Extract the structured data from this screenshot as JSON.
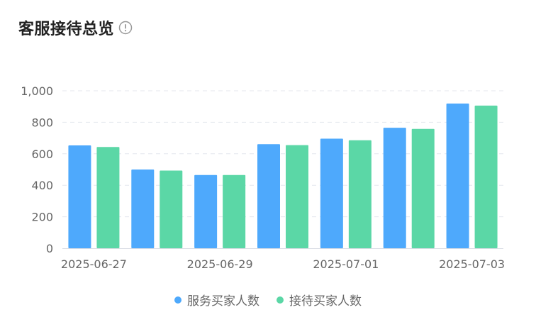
{
  "header": {
    "title": "客服接待总览",
    "info_icon": "info-circle-icon"
  },
  "colors": {
    "series_1": "#4ea9fc",
    "series_2": "#5bd7a6"
  },
  "chart_data": {
    "type": "bar",
    "categories": [
      "2025-06-27",
      "2025-06-28",
      "2025-06-29",
      "2025-06-30",
      "2025-07-01",
      "2025-07-02",
      "2025-07-03"
    ],
    "x_tick_labels": [
      "2025-06-27",
      "2025-06-29",
      "2025-07-01",
      "2025-07-03"
    ],
    "series": [
      {
        "name": "服务买家人数",
        "values": [
          653,
          500,
          465,
          661,
          696,
          765,
          919
        ]
      },
      {
        "name": "接待买家人数",
        "values": [
          643,
          493,
          465,
          655,
          686,
          758,
          906
        ]
      }
    ],
    "ylim": [
      0,
      1000
    ],
    "y_ticks": [
      0,
      200,
      400,
      600,
      800,
      1000
    ],
    "y_tick_labels": [
      "0",
      "200",
      "400",
      "600",
      "800",
      "1,000"
    ],
    "grid": true,
    "legend_position": "bottom"
  }
}
